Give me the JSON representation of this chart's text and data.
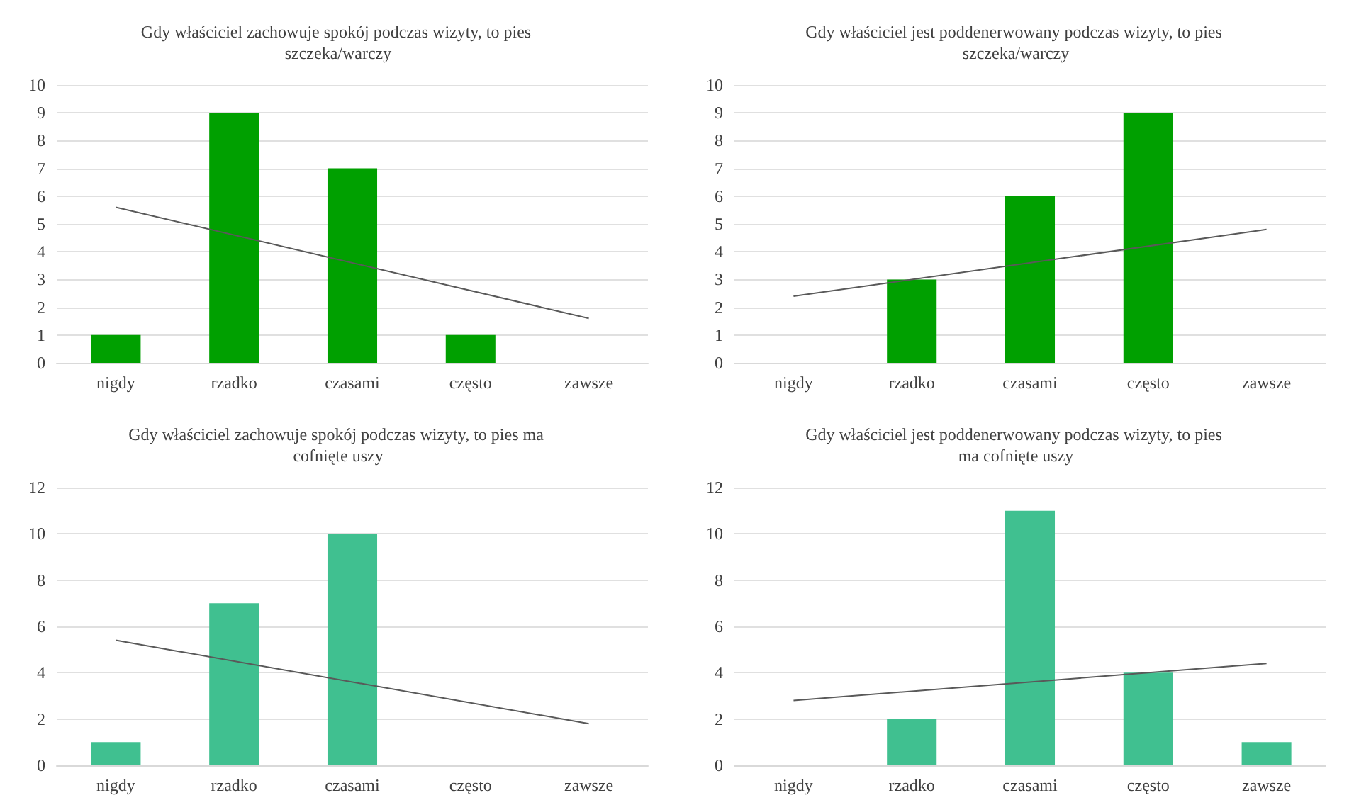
{
  "chart_data": [
    {
      "type": "bar",
      "title": "Gdy właściciel zachowuje spokój podczas wizyty, to pies szczeka/warczy",
      "categories": [
        "nigdy",
        "rzadko",
        "czasami",
        "często",
        "zawsze"
      ],
      "ylim": [
        0,
        10
      ],
      "yticks": [
        0,
        1,
        2,
        3,
        4,
        5,
        6,
        7,
        8,
        9,
        10
      ],
      "grid": "y",
      "marker": "none",
      "series": [
        {
          "color": "#00a000",
          "values": [
            1,
            9,
            7,
            1,
            0
          ]
        },
        {
          "type": "line",
          "color": "#595959",
          "x": [
            "nigdy",
            "zawsze"
          ],
          "values": [
            5.6,
            1.6
          ]
        }
      ]
    },
    {
      "type": "bar",
      "title": "Gdy właściciel jest poddenerwowany podczas wizyty, to pies szczeka/warczy",
      "categories": [
        "nigdy",
        "rzadko",
        "czasami",
        "często",
        "zawsze"
      ],
      "ylim": [
        0,
        10
      ],
      "yticks": [
        0,
        1,
        2,
        3,
        4,
        5,
        6,
        7,
        8,
        9,
        10
      ],
      "grid": "y",
      "marker": "none",
      "series": [
        {
          "color": "#00a000",
          "values": [
            0,
            3,
            6,
            9,
            0
          ]
        },
        {
          "type": "line",
          "color": "#595959",
          "x": [
            "nigdy",
            "zawsze"
          ],
          "values": [
            2.4,
            4.8
          ]
        }
      ]
    },
    {
      "type": "bar",
      "title": "Gdy właściciel zachowuje spokój podczas wizyty, to pies ma cofnięte uszy",
      "categories": [
        "nigdy",
        "rzadko",
        "czasami",
        "często",
        "zawsze"
      ],
      "ylim": [
        0,
        12
      ],
      "yticks": [
        0,
        2,
        4,
        6,
        8,
        10,
        12
      ],
      "grid": "y",
      "marker": "none",
      "series": [
        {
          "color": "#40c090",
          "values": [
            1,
            7,
            10,
            0,
            0
          ]
        },
        {
          "type": "line",
          "color": "#595959",
          "x": [
            "nigdy",
            "zawsze"
          ],
          "values": [
            5.4,
            1.8
          ]
        }
      ]
    },
    {
      "type": "bar",
      "title": "Gdy właściciel jest poddenerwowany podczas wizyty, to pies ma cofnięte uszy",
      "categories": [
        "nigdy",
        "rzadko",
        "czasami",
        "często",
        "zawsze"
      ],
      "ylim": [
        0,
        12
      ],
      "yticks": [
        0,
        2,
        4,
        6,
        8,
        10,
        12
      ],
      "grid": "y",
      "marker": "none",
      "series": [
        {
          "color": "#40c090",
          "values": [
            0,
            2,
            11,
            4,
            1
          ]
        },
        {
          "type": "line",
          "color": "#595959",
          "x": [
            "nigdy",
            "zawsze"
          ],
          "values": [
            2.8,
            4.4
          ]
        }
      ]
    }
  ]
}
